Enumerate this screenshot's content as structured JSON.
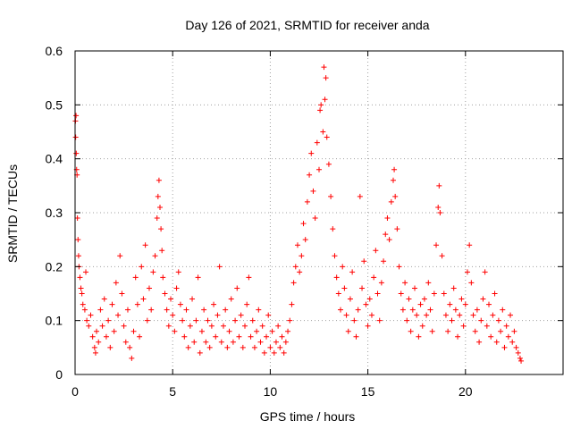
{
  "chart_data": {
    "type": "scatter",
    "title": "Day 126 of 2021, SRMTID for receiver anda",
    "xlabel": "GPS time / hours",
    "ylabel": "SRMTID / TECUs",
    "xlim": [
      0,
      25
    ],
    "ylim": [
      0,
      0.6
    ],
    "xticks": [
      0,
      5,
      10,
      15,
      20
    ],
    "xtick_labels": [
      "0",
      "5",
      "10",
      "15",
      "20"
    ],
    "yticks": [
      0,
      0.1,
      0.2,
      0.3,
      0.4,
      0.5,
      0.6
    ],
    "ytick_labels": [
      "0",
      "0.1",
      "0.2",
      "0.3",
      "0.4",
      "0.5",
      "0.6"
    ],
    "grid": true,
    "marker": "+",
    "color": "#ff0000",
    "series": [
      {
        "name": "SRMTID",
        "points": [
          [
            0.02,
            0.47
          ],
          [
            0.03,
            0.44
          ],
          [
            0.05,
            0.48
          ],
          [
            0.06,
            0.41
          ],
          [
            0.08,
            0.38
          ],
          [
            0.1,
            0.37
          ],
          [
            0.12,
            0.29
          ],
          [
            0.15,
            0.25
          ],
          [
            0.18,
            0.22
          ],
          [
            0.2,
            0.2
          ],
          [
            0.25,
            0.18
          ],
          [
            0.3,
            0.16
          ],
          [
            0.35,
            0.15
          ],
          [
            0.4,
            0.13
          ],
          [
            0.5,
            0.12
          ],
          [
            0.55,
            0.19
          ],
          [
            0.6,
            0.1
          ],
          [
            0.7,
            0.09
          ],
          [
            0.8,
            0.11
          ],
          [
            0.9,
            0.07
          ],
          [
            1.0,
            0.05
          ],
          [
            1.05,
            0.04
          ],
          [
            1.1,
            0.08
          ],
          [
            1.2,
            0.06
          ],
          [
            1.3,
            0.12
          ],
          [
            1.4,
            0.09
          ],
          [
            1.5,
            0.14
          ],
          [
            1.6,
            0.07
          ],
          [
            1.7,
            0.1
          ],
          [
            1.8,
            0.05
          ],
          [
            1.9,
            0.13
          ],
          [
            2.0,
            0.08
          ],
          [
            2.1,
            0.17
          ],
          [
            2.2,
            0.11
          ],
          [
            2.3,
            0.22
          ],
          [
            2.4,
            0.15
          ],
          [
            2.5,
            0.09
          ],
          [
            2.6,
            0.06
          ],
          [
            2.7,
            0.12
          ],
          [
            2.8,
            0.05
          ],
          [
            2.9,
            0.03
          ],
          [
            3.0,
            0.08
          ],
          [
            3.1,
            0.18
          ],
          [
            3.2,
            0.13
          ],
          [
            3.3,
            0.07
          ],
          [
            3.4,
            0.2
          ],
          [
            3.5,
            0.14
          ],
          [
            3.6,
            0.24
          ],
          [
            3.7,
            0.1
          ],
          [
            3.8,
            0.16
          ],
          [
            3.9,
            0.12
          ],
          [
            4.0,
            0.19
          ],
          [
            4.1,
            0.22
          ],
          [
            4.2,
            0.29
          ],
          [
            4.25,
            0.33
          ],
          [
            4.3,
            0.36
          ],
          [
            4.35,
            0.31
          ],
          [
            4.4,
            0.27
          ],
          [
            4.45,
            0.23
          ],
          [
            4.5,
            0.18
          ],
          [
            4.6,
            0.15
          ],
          [
            4.7,
            0.12
          ],
          [
            4.8,
            0.09
          ],
          [
            4.9,
            0.14
          ],
          [
            5.0,
            0.11
          ],
          [
            5.1,
            0.08
          ],
          [
            5.2,
            0.16
          ],
          [
            5.3,
            0.19
          ],
          [
            5.4,
            0.13
          ],
          [
            5.5,
            0.1
          ],
          [
            5.6,
            0.07
          ],
          [
            5.7,
            0.12
          ],
          [
            5.8,
            0.05
          ],
          [
            5.9,
            0.09
          ],
          [
            6.0,
            0.14
          ],
          [
            6.1,
            0.06
          ],
          [
            6.2,
            0.1
          ],
          [
            6.3,
            0.18
          ],
          [
            6.4,
            0.04
          ],
          [
            6.5,
            0.08
          ],
          [
            6.6,
            0.12
          ],
          [
            6.7,
            0.06
          ],
          [
            6.8,
            0.1
          ],
          [
            6.9,
            0.05
          ],
          [
            7.0,
            0.09
          ],
          [
            7.1,
            0.13
          ],
          [
            7.2,
            0.07
          ],
          [
            7.3,
            0.11
          ],
          [
            7.4,
            0.2
          ],
          [
            7.5,
            0.06
          ],
          [
            7.6,
            0.09
          ],
          [
            7.7,
            0.12
          ],
          [
            7.8,
            0.05
          ],
          [
            7.9,
            0.08
          ],
          [
            8.0,
            0.14
          ],
          [
            8.1,
            0.06
          ],
          [
            8.2,
            0.1
          ],
          [
            8.3,
            0.16
          ],
          [
            8.4,
            0.07
          ],
          [
            8.5,
            0.11
          ],
          [
            8.6,
            0.05
          ],
          [
            8.7,
            0.09
          ],
          [
            8.8,
            0.13
          ],
          [
            8.9,
            0.18
          ],
          [
            9.0,
            0.07
          ],
          [
            9.1,
            0.1
          ],
          [
            9.2,
            0.05
          ],
          [
            9.3,
            0.08
          ],
          [
            9.4,
            0.12
          ],
          [
            9.5,
            0.06
          ],
          [
            9.6,
            0.09
          ],
          [
            9.7,
            0.04
          ],
          [
            9.8,
            0.07
          ],
          [
            9.9,
            0.11
          ],
          [
            10.0,
            0.05
          ],
          [
            10.1,
            0.08
          ],
          [
            10.2,
            0.04
          ],
          [
            10.3,
            0.06
          ],
          [
            10.4,
            0.09
          ],
          [
            10.5,
            0.05
          ],
          [
            10.6,
            0.07
          ],
          [
            10.7,
            0.04
          ],
          [
            10.8,
            0.06
          ],
          [
            10.9,
            0.08
          ],
          [
            11.0,
            0.1
          ],
          [
            11.1,
            0.13
          ],
          [
            11.2,
            0.17
          ],
          [
            11.3,
            0.2
          ],
          [
            11.4,
            0.24
          ],
          [
            11.5,
            0.19
          ],
          [
            11.6,
            0.22
          ],
          [
            11.7,
            0.28
          ],
          [
            11.8,
            0.25
          ],
          [
            11.9,
            0.32
          ],
          [
            12.0,
            0.37
          ],
          [
            12.1,
            0.41
          ],
          [
            12.2,
            0.34
          ],
          [
            12.3,
            0.29
          ],
          [
            12.4,
            0.43
          ],
          [
            12.5,
            0.38
          ],
          [
            12.55,
            0.49
          ],
          [
            12.6,
            0.5
          ],
          [
            12.7,
            0.45
          ],
          [
            12.75,
            0.57
          ],
          [
            12.8,
            0.51
          ],
          [
            12.85,
            0.55
          ],
          [
            12.9,
            0.44
          ],
          [
            13.0,
            0.39
          ],
          [
            13.1,
            0.33
          ],
          [
            13.2,
            0.27
          ],
          [
            13.3,
            0.22
          ],
          [
            13.4,
            0.18
          ],
          [
            13.5,
            0.15
          ],
          [
            13.6,
            0.12
          ],
          [
            13.7,
            0.2
          ],
          [
            13.8,
            0.16
          ],
          [
            13.9,
            0.11
          ],
          [
            14.0,
            0.08
          ],
          [
            14.1,
            0.14
          ],
          [
            14.2,
            0.19
          ],
          [
            14.3,
            0.1
          ],
          [
            14.4,
            0.07
          ],
          [
            14.5,
            0.12
          ],
          [
            14.6,
            0.33
          ],
          [
            14.7,
            0.16
          ],
          [
            14.8,
            0.21
          ],
          [
            14.9,
            0.13
          ],
          [
            15.0,
            0.09
          ],
          [
            15.1,
            0.14
          ],
          [
            15.2,
            0.11
          ],
          [
            15.3,
            0.18
          ],
          [
            15.4,
            0.23
          ],
          [
            15.5,
            0.15
          ],
          [
            15.6,
            0.1
          ],
          [
            15.7,
            0.17
          ],
          [
            15.8,
            0.21
          ],
          [
            15.9,
            0.26
          ],
          [
            16.0,
            0.29
          ],
          [
            16.1,
            0.25
          ],
          [
            16.2,
            0.32
          ],
          [
            16.3,
            0.36
          ],
          [
            16.35,
            0.38
          ],
          [
            16.4,
            0.33
          ],
          [
            16.5,
            0.27
          ],
          [
            16.6,
            0.2
          ],
          [
            16.7,
            0.15
          ],
          [
            16.8,
            0.12
          ],
          [
            16.9,
            0.17
          ],
          [
            17.0,
            0.1
          ],
          [
            17.1,
            0.14
          ],
          [
            17.2,
            0.08
          ],
          [
            17.3,
            0.12
          ],
          [
            17.4,
            0.16
          ],
          [
            17.5,
            0.11
          ],
          [
            17.6,
            0.07
          ],
          [
            17.7,
            0.13
          ],
          [
            17.8,
            0.09
          ],
          [
            17.9,
            0.14
          ],
          [
            18.0,
            0.11
          ],
          [
            18.1,
            0.17
          ],
          [
            18.2,
            0.12
          ],
          [
            18.3,
            0.08
          ],
          [
            18.4,
            0.15
          ],
          [
            18.5,
            0.24
          ],
          [
            18.6,
            0.31
          ],
          [
            18.65,
            0.35
          ],
          [
            18.7,
            0.3
          ],
          [
            18.8,
            0.22
          ],
          [
            18.9,
            0.15
          ],
          [
            19.0,
            0.11
          ],
          [
            19.1,
            0.08
          ],
          [
            19.2,
            0.13
          ],
          [
            19.3,
            0.1
          ],
          [
            19.4,
            0.16
          ],
          [
            19.5,
            0.12
          ],
          [
            19.6,
            0.07
          ],
          [
            19.7,
            0.11
          ],
          [
            19.8,
            0.14
          ],
          [
            19.9,
            0.09
          ],
          [
            20.0,
            0.13
          ],
          [
            20.1,
            0.19
          ],
          [
            20.2,
            0.24
          ],
          [
            20.3,
            0.17
          ],
          [
            20.4,
            0.11
          ],
          [
            20.5,
            0.08
          ],
          [
            20.6,
            0.12
          ],
          [
            20.7,
            0.06
          ],
          [
            20.8,
            0.1
          ],
          [
            20.9,
            0.14
          ],
          [
            21.0,
            0.19
          ],
          [
            21.1,
            0.09
          ],
          [
            21.2,
            0.13
          ],
          [
            21.3,
            0.07
          ],
          [
            21.4,
            0.11
          ],
          [
            21.5,
            0.15
          ],
          [
            21.6,
            0.06
          ],
          [
            21.7,
            0.1
          ],
          [
            21.8,
            0.08
          ],
          [
            21.9,
            0.12
          ],
          [
            22.0,
            0.05
          ],
          [
            22.1,
            0.09
          ],
          [
            22.2,
            0.07
          ],
          [
            22.3,
            0.11
          ],
          [
            22.4,
            0.06
          ],
          [
            22.5,
            0.08
          ],
          [
            22.6,
            0.05
          ],
          [
            22.7,
            0.04
          ],
          [
            22.8,
            0.03
          ],
          [
            22.85,
            0.025
          ]
        ]
      }
    ]
  }
}
